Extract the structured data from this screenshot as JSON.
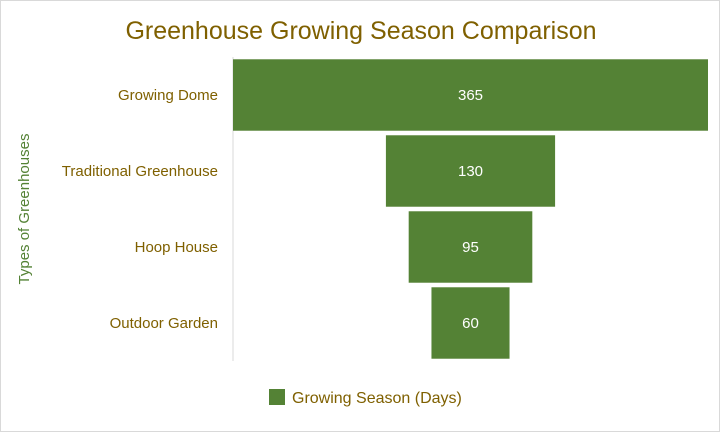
{
  "chart_data": {
    "type": "bar",
    "subtype": "funnel",
    "title": "Greenhouse Growing Season Comparison",
    "ylabel": "Types of Greenhouses",
    "xlabel": "",
    "categories": [
      "Growing Dome",
      "Traditional Greenhouse",
      "Hoop House",
      "Outdoor Garden"
    ],
    "series": [
      {
        "name": "Growing Season (Days)",
        "values": [
          365,
          130,
          95,
          60
        ]
      }
    ],
    "data_labels": [
      "365",
      "130",
      "95",
      "60"
    ],
    "legend_position": "bottom",
    "grid": false
  },
  "colors": {
    "bar": "#548235",
    "title": "#7f6000",
    "category_label": "#7f6000",
    "axis_title": "#548235",
    "legend_text": "#7f6000",
    "data_label": "#ffffff",
    "axis_line": "#d9d9d9"
  }
}
